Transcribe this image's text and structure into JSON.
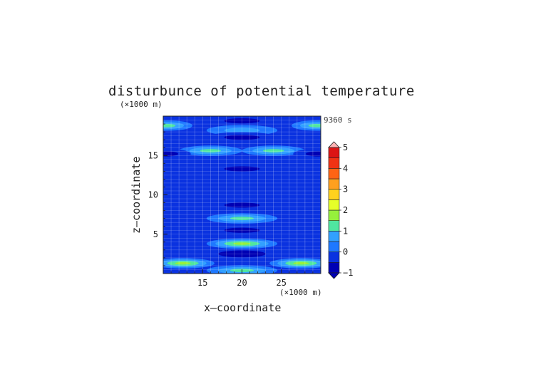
{
  "chart_data": {
    "type": "heatmap",
    "title": "disturbunce of potential temperature",
    "xlabel": "x—coordinate",
    "ylabel": "z—coordinate",
    "x_unit": "(×1000 m)",
    "y_unit": "(×1000 m)",
    "time_label": "9360 s",
    "xlim": [
      10,
      30
    ],
    "ylim": [
      0,
      20
    ],
    "x_ticks": [
      15,
      20,
      25
    ],
    "y_ticks": [
      5,
      10,
      15
    ],
    "x_tick_labels": [
      "15",
      "20",
      "25"
    ],
    "y_tick_labels": [
      "5",
      "10",
      "15"
    ],
    "grid": true,
    "colorbar": {
      "min": -1,
      "max": 5,
      "step": 0.5,
      "tick_values": [
        -1,
        0,
        1,
        2,
        3,
        4,
        5
      ],
      "tick_labels": [
        "−1",
        "0",
        "1",
        "2",
        "3",
        "4",
        "5"
      ],
      "colors": [
        "#0000b4",
        "#0a32e0",
        "#1e78ff",
        "#32a0ff",
        "#50e6a0",
        "#96f03c",
        "#e6ff28",
        "#ffd21e",
        "#ffa01e",
        "#ff6414",
        "#f03214",
        "#dc1414",
        "#f08c8c",
        "#ffb4b4"
      ]
    },
    "field_features": [
      {
        "x": 20,
        "z": 19.4,
        "value": -0.7
      },
      {
        "x": 10.5,
        "z": 18.8,
        "value": 0.9
      },
      {
        "x": 29.5,
        "z": 18.8,
        "value": 0.9
      },
      {
        "x": 20,
        "z": 18.2,
        "value": 0.5
      },
      {
        "x": 20,
        "z": 17.3,
        "value": -0.6
      },
      {
        "x": 16,
        "z": 15.6,
        "value": 1.1
      },
      {
        "x": 24,
        "z": 15.6,
        "value": 1.1
      },
      {
        "x": 10.3,
        "z": 15.2,
        "value": -0.7
      },
      {
        "x": 29.7,
        "z": 15.2,
        "value": -0.7
      },
      {
        "x": 20,
        "z": 13.3,
        "value": -0.6
      },
      {
        "x": 20,
        "z": 8.7,
        "value": -0.7
      },
      {
        "x": 20,
        "z": 7.0,
        "value": 0.8
      },
      {
        "x": 20,
        "z": 5.5,
        "value": -0.6
      },
      {
        "x": 20,
        "z": 3.8,
        "value": 1.2
      },
      {
        "x": 20,
        "z": 2.5,
        "value": -0.9
      },
      {
        "x": 12.5,
        "z": 1.3,
        "value": 1.3
      },
      {
        "x": 27.5,
        "z": 1.3,
        "value": 1.3
      },
      {
        "x": 20,
        "z": 0.4,
        "value": 0.7
      }
    ],
    "background_value": -0.05
  }
}
